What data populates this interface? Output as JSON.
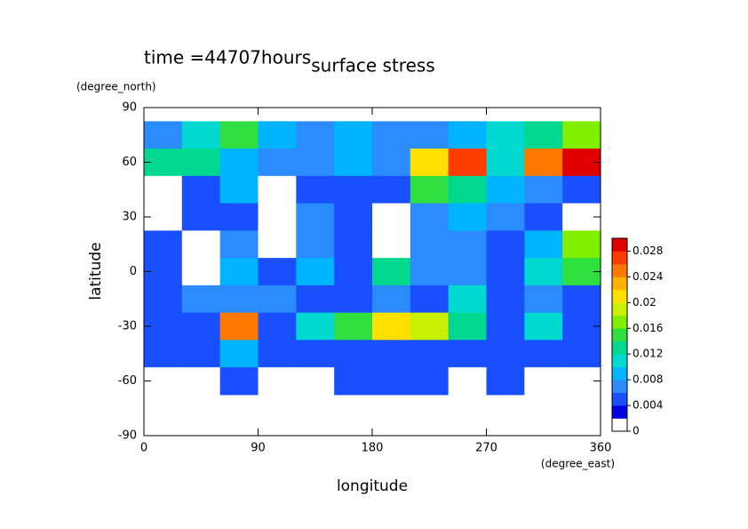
{
  "chart_data": {
    "type": "contour",
    "title": "surface stress",
    "subtitle": "time =44707hours",
    "xlabel": "longitude",
    "xunit": "(degree_east)",
    "ylabel": "latitude",
    "yunit": "(degree_north)",
    "xlim": [
      0,
      360
    ],
    "xticks": [
      0,
      90,
      180,
      270,
      360
    ],
    "ylim": [
      -90,
      90
    ],
    "yticks": [
      -90,
      -60,
      -30,
      0,
      30,
      60,
      90
    ],
    "x": [
      15,
      45,
      75,
      105,
      135,
      165,
      195,
      225,
      255,
      285,
      315,
      345
    ],
    "y": [
      75,
      60,
      45,
      30,
      15,
      0,
      -15,
      -30,
      -45,
      -60
    ],
    "z": [
      [
        0.006,
        0.01,
        0.014,
        0.008,
        0.006,
        0.008,
        0.006,
        0.006,
        0.008,
        0.01,
        0.012,
        0.016
      ],
      [
        0.012,
        0.012,
        0.008,
        0.006,
        0.006,
        0.008,
        0.006,
        0.02,
        0.026,
        0.01,
        0.024,
        0.028
      ],
      [
        0.001,
        0.004,
        0.008,
        0.001,
        0.004,
        0.004,
        0.004,
        0.014,
        0.012,
        0.008,
        0.006,
        0.004
      ],
      [
        0.001,
        0.004,
        0.004,
        0.001,
        0.006,
        0.004,
        0.001,
        0.006,
        0.008,
        0.006,
        0.004,
        0.001
      ],
      [
        0.004,
        0.001,
        0.006,
        0.001,
        0.006,
        0.004,
        0.001,
        0.006,
        0.006,
        0.004,
        0.008,
        0.016
      ],
      [
        0.004,
        0.001,
        0.008,
        0.004,
        0.008,
        0.004,
        0.012,
        0.006,
        0.006,
        0.004,
        0.01,
        0.014
      ],
      [
        0.004,
        0.006,
        0.006,
        0.006,
        0.004,
        0.004,
        0.006,
        0.004,
        0.01,
        0.004,
        0.006,
        0.004
      ],
      [
        0.004,
        0.004,
        0.024,
        0.004,
        0.01,
        0.014,
        0.02,
        0.018,
        0.012,
        0.004,
        0.01,
        0.004
      ],
      [
        0.004,
        0.004,
        0.008,
        0.004,
        0.004,
        0.004,
        0.004,
        0.004,
        0.004,
        0.004,
        0.004,
        0.004
      ],
      [
        0.001,
        0.001,
        0.004,
        0.001,
        0.001,
        0.004,
        0.004,
        0.004,
        0.001,
        0.004,
        0.001,
        0.001
      ]
    ],
    "levels": [
      0,
      0.002,
      0.004,
      0.006,
      0.008,
      0.01,
      0.012,
      0.014,
      0.016,
      0.018,
      0.02,
      0.022,
      0.024,
      0.026,
      0.028,
      0.03
    ],
    "colors": [
      "#ffffff",
      "#0000e0",
      "#1a4fff",
      "#2a8cff",
      "#00b4ff",
      "#00d8d0",
      "#00d890",
      "#30e040",
      "#80f000",
      "#c8f000",
      "#ffe000",
      "#ffb000",
      "#ff7800",
      "#ff3c00",
      "#e00000"
    ],
    "clim": [
      0,
      0.03
    ],
    "cticks": [
      0,
      0.004,
      0.008,
      0.012,
      0.016,
      0.02,
      0.024,
      0.028
    ]
  }
}
